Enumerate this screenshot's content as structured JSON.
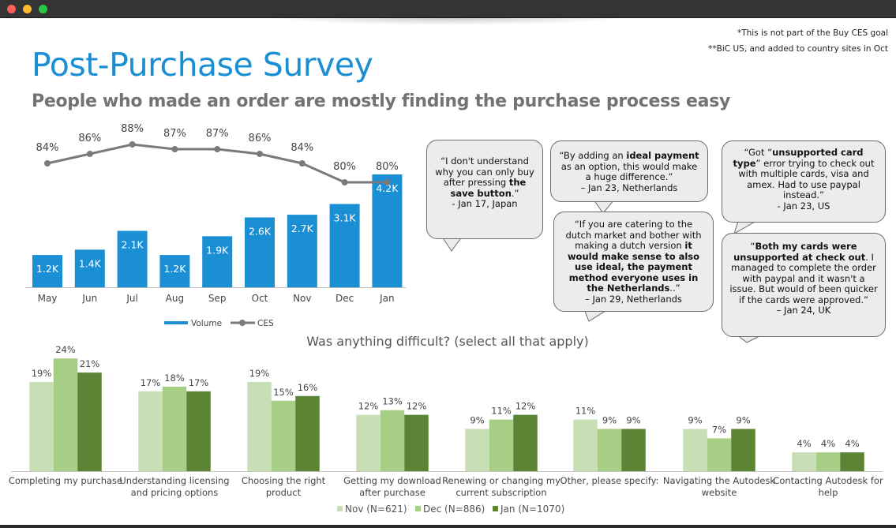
{
  "window": {
    "controls": [
      "close",
      "minimize",
      "zoom"
    ]
  },
  "notes": [
    "*This is not part of the Buy CES goal",
    "**BiC US, and added to country sites in Oct"
  ],
  "title": "Post-Purchase Survey",
  "subtitle": "People who made an order are mostly finding the purchase process easy",
  "colors": {
    "title": "#1b8fd4",
    "volume": "#1b8fd4",
    "ces": "#7a7a7a",
    "nov": "#c8deb4",
    "dec": "#a6cf85",
    "jan": "#5b8434"
  },
  "quotes": [
    {
      "pre": "“I don't understand why you can only buy after pressing ",
      "bold": "the save button",
      "post": ".”",
      "author": "- Jan 17, Japan"
    },
    {
      "pre": "“By adding an ",
      "bold": "ideal payment",
      "post": " as an option, this would make a huge difference.”",
      "author": "– Jan 23, Netherlands"
    },
    {
      "pre": "“If you are catering to the dutch market and bother with making a dutch version ",
      "bold": "it would make sense to also use ideal, the payment method everyone uses in the Netherlands",
      "post": "..”",
      "author": "– Jan 29, Netherlands"
    },
    {
      "pre": "“Got “",
      "bold": "unsupported card type",
      "post": "” error trying to check out with multiple cards, visa and amex.  Had to use paypal instead.”",
      "author": "- Jan 23, US"
    },
    {
      "pre": "“",
      "bold": "Both my cards were unsupported at check out",
      "post": ". I managed to complete the order with paypal and it wasn't a issue. But would of been quicker if the cards were approved.”",
      "author": "– Jan 24, UK"
    }
  ],
  "chart_data": [
    {
      "type": "bar",
      "categories": [
        "May",
        "Jun",
        "Jul",
        "Aug",
        "Sep",
        "Oct",
        "Nov",
        "Dec",
        "Jan"
      ],
      "series": [
        {
          "name": "Volume",
          "values": [
            1.2,
            1.4,
            2.1,
            1.2,
            1.9,
            2.6,
            2.7,
            3.1,
            4.2
          ],
          "labels": [
            "1.2K",
            "1.4K",
            "2.1K",
            "1.2K",
            "1.9K",
            "2.6K",
            "2.7K",
            "3.1K",
            "4.2K"
          ]
        },
        {
          "name": "CES",
          "type": "line",
          "values": [
            84,
            86,
            88,
            87,
            87,
            86,
            84,
            80,
            80
          ],
          "labels": [
            "84%",
            "86%",
            "88%",
            "87%",
            "87%",
            "86%",
            "84%",
            "80%",
            "80%"
          ]
        }
      ],
      "legend": "bottom",
      "grid": false
    },
    {
      "type": "bar",
      "title": "Was anything difficult? (select all that apply)",
      "categories": [
        "Completing my purchase",
        "Understanding licensing and pricing options",
        "Choosing the right product",
        "Getting my download after purchase",
        "Renewing or changing my current subscription",
        "Other, please specify:",
        "Navigating the Autodesk website",
        "Contacting Autodesk for help"
      ],
      "series": [
        {
          "name": "Nov (N=621)",
          "values": [
            19,
            17,
            19,
            12,
            9,
            11,
            9,
            4
          ]
        },
        {
          "name": "Dec (N=886)",
          "values": [
            24,
            18,
            15,
            13,
            11,
            9,
            7,
            4
          ]
        },
        {
          "name": "Jan (N=1070)",
          "values": [
            21,
            17,
            16,
            12,
            12,
            9,
            9,
            4
          ]
        }
      ],
      "unit": "%",
      "legend": "bottom",
      "grid": false
    }
  ]
}
